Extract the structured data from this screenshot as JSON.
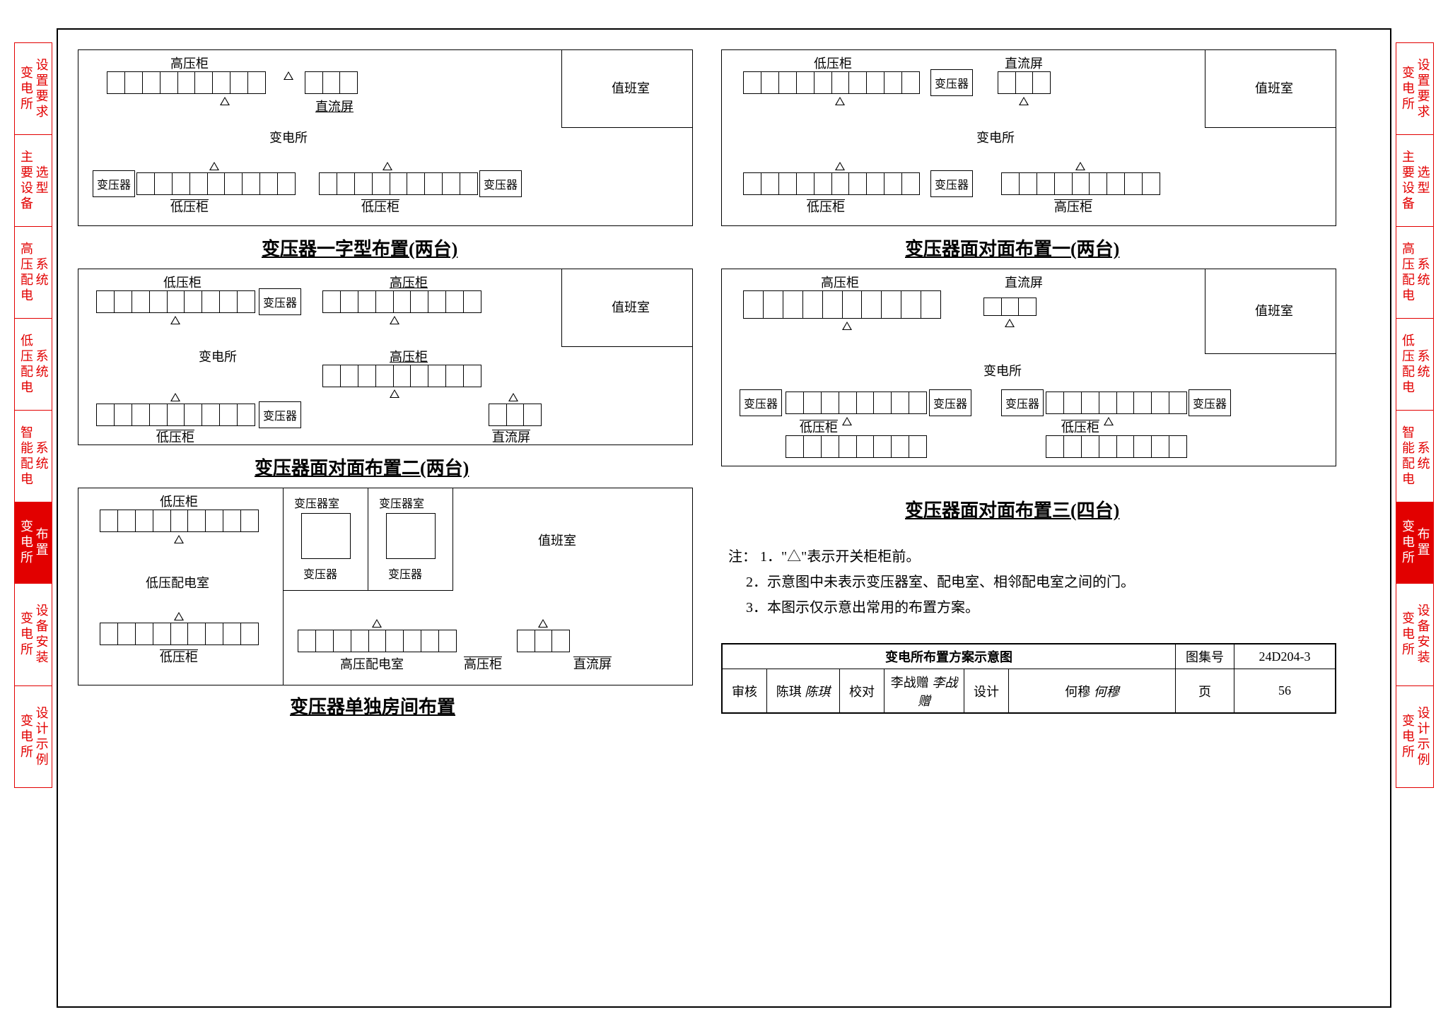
{
  "tabs": [
    {
      "a": "变电所",
      "b": "设置要求",
      "active": false
    },
    {
      "a": "主要设备",
      "b": "选型",
      "active": false
    },
    {
      "a": "高压配电",
      "b": "系统",
      "active": false
    },
    {
      "a": "低压配电",
      "b": "系统",
      "active": false
    },
    {
      "a": "智能配电",
      "b": "系统",
      "active": false
    },
    {
      "a": "变电所",
      "b": "布置",
      "active": true
    },
    {
      "a": "变电所",
      "b": "设备安装",
      "active": false
    },
    {
      "a": "变电所",
      "b": "设计示例",
      "active": false
    }
  ],
  "panels": {
    "p1": {
      "caption": "变压器一字型布置(两台)",
      "labels": {
        "hv": "高压柜",
        "lv": "低压柜",
        "dc": "直流屏",
        "xfmr": "变压器",
        "sub": "变电所",
        "duty": "值班室"
      }
    },
    "p2": {
      "caption": "变压器面对面布置一(两台)",
      "labels": {
        "hv": "高压柜",
        "lv": "低压柜",
        "dc": "直流屏",
        "xfmr": "变压器",
        "sub": "变电所",
        "duty": "值班室"
      }
    },
    "p3": {
      "caption": "变压器面对面布置二(两台)",
      "labels": {
        "hv": "高压柜",
        "lv": "低压柜",
        "dc": "直流屏",
        "xfmr": "变压器",
        "sub": "变电所",
        "duty": "值班室"
      }
    },
    "p4": {
      "caption": "变压器面对面布置三(四台)",
      "labels": {
        "hv": "高压柜",
        "lv": "低压柜",
        "dc": "直流屏",
        "xfmr": "变压器",
        "sub": "变电所",
        "duty": "值班室"
      }
    },
    "p5": {
      "caption": "变压器单独房间布置",
      "labels": {
        "hv": "高压柜",
        "lv": "低压柜",
        "dc": "直流屏",
        "xfmr": "变压器",
        "xfmr_room": "变压器室",
        "lv_room": "低压配电室",
        "hv_room": "高压配电室",
        "duty": "值班室"
      }
    }
  },
  "notes": {
    "prefix": "注：",
    "items": [
      "1．\"△\"表示开关柜柜前。",
      "2．示意图中未表示变压器室、配电室、相邻配电室之间的门。",
      "3．本图示仅示意出常用的布置方案。"
    ]
  },
  "title_block": {
    "main": "变电所布置方案示意图",
    "atlas_label": "图集号",
    "atlas_no": "24D204-3",
    "page_label": "页",
    "page_no": "56",
    "review_label": "审核",
    "review_name": "陈琪",
    "review_sig": "陈琪",
    "check_label": "校对",
    "check_name": "李战赠",
    "check_sig": "李战赠",
    "design_label": "设计",
    "design_name": "何穆",
    "design_sig": "何穆"
  },
  "colors": {
    "accent": "#e20000",
    "line": "#000000",
    "bg": "#ffffff"
  }
}
